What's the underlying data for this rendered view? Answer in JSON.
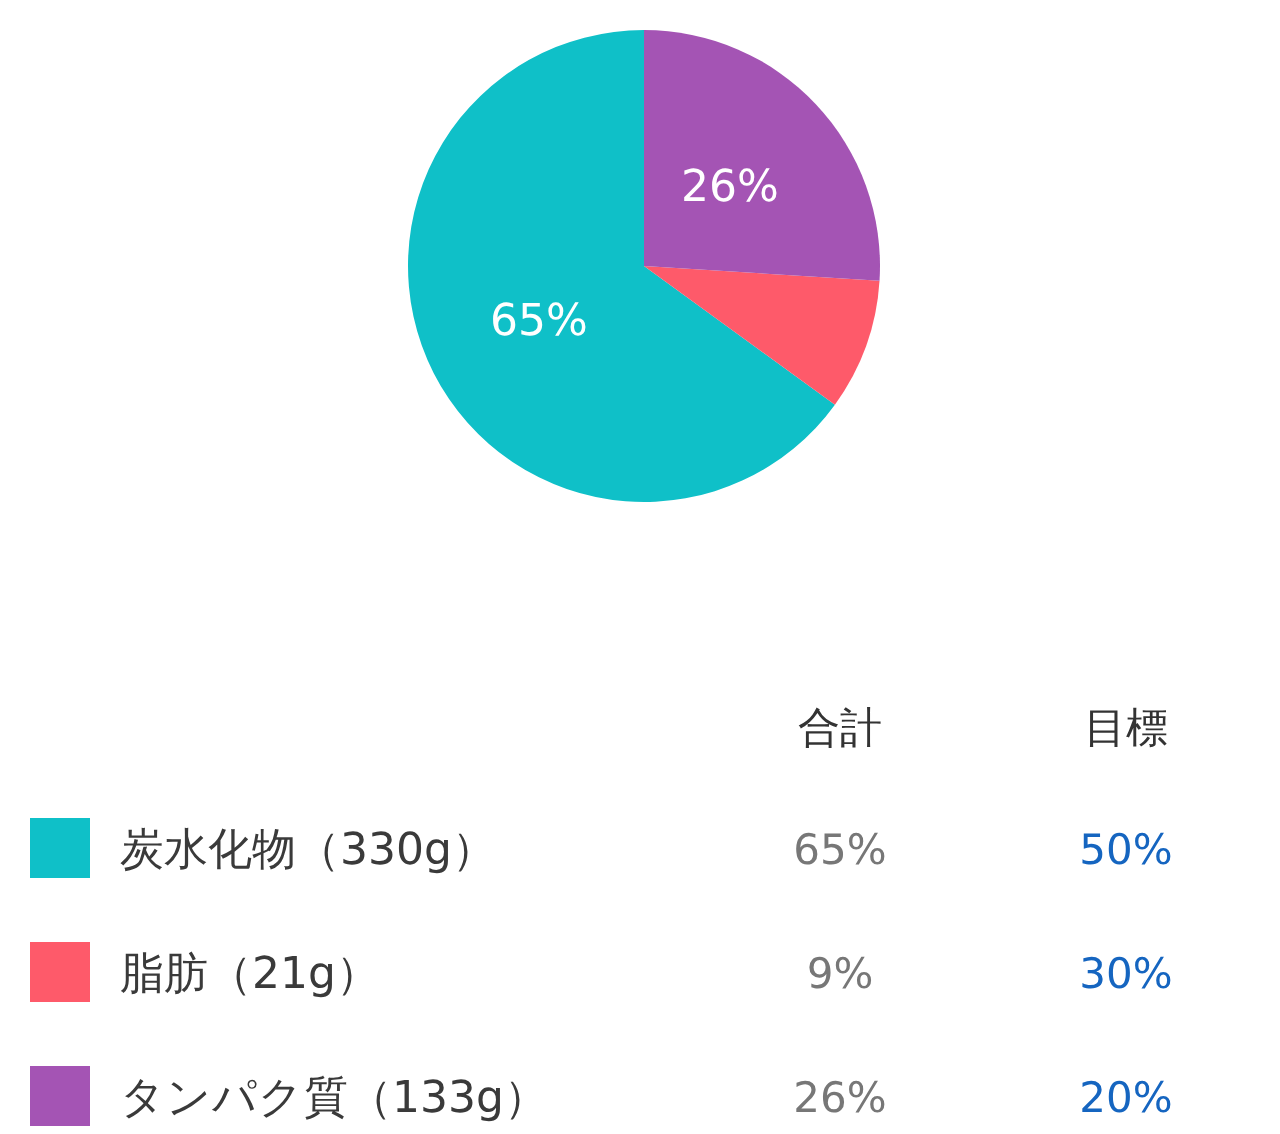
{
  "chart_data": {
    "type": "pie",
    "categories": [
      "炭水化物（330g）",
      "脂肪（21g）",
      "タンパク質（133g）"
    ],
    "values": [
      65,
      9,
      26
    ],
    "colors": [
      "#0fc0c8",
      "#fe5a6a",
      "#a454b4"
    ],
    "value_labels": [
      "65%",
      "9%",
      "26%"
    ],
    "legend": "bottom",
    "annotations": [
      "合計",
      "目標",
      "50%",
      "30%",
      "20%"
    ]
  }
}
